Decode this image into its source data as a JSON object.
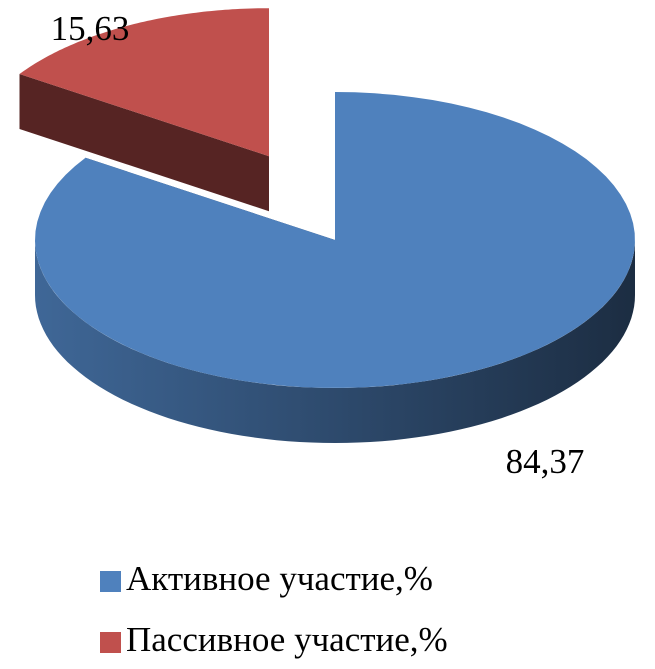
{
  "chart_data": {
    "type": "pie",
    "categories": [
      "Активное участие,%",
      "Пассивное участие,%"
    ],
    "values": [
      84.37,
      15.63
    ],
    "value_labels": [
      "84,37",
      "15,63"
    ],
    "colors": [
      "#4f81bd",
      "#c0504d"
    ],
    "legend": "bottom"
  }
}
